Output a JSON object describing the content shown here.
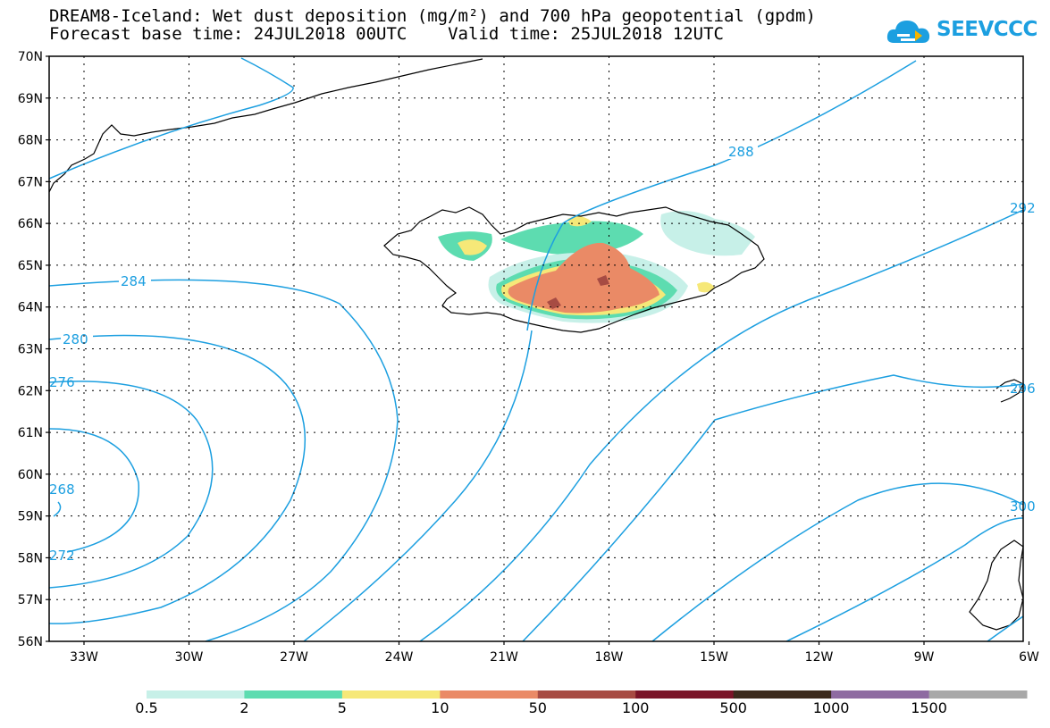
{
  "header": {
    "title_line1": "DREAM8-Iceland: Wet dust deposition (mg/m²) and 700 hPa geopotential (gpdm)",
    "title_line2": "Forecast base time: 24JUL2018 00UTC    Valid time: 25JUL2018 12UTC",
    "logo_text": "SEEVCCC"
  },
  "map": {
    "lat_labels": [
      "70N",
      "69N",
      "68N",
      "67N",
      "66N",
      "65N",
      "64N",
      "63N",
      "62N",
      "61N",
      "60N",
      "59N",
      "58N",
      "57N",
      "56N"
    ],
    "lon_labels": [
      "33W",
      "30W",
      "27W",
      "24W",
      "21W",
      "18W",
      "15W",
      "12W",
      "9W",
      "6W"
    ],
    "contour_labels": [
      "288",
      "284",
      "280",
      "276",
      "272",
      "268",
      "292",
      "296",
      "300"
    ],
    "contour_color": "#1c9fe0"
  },
  "legend": {
    "labels": [
      "0.5",
      "2",
      "5",
      "10",
      "50",
      "100",
      "500",
      "1000",
      "1500"
    ],
    "colors": [
      "#c7f0e8",
      "#5ddcb0",
      "#f6e878",
      "#ea8a66",
      "#a74b43",
      "#7a1428",
      "#3b2a1c",
      "#8e6ba1",
      "#a8a8a8"
    ]
  }
}
